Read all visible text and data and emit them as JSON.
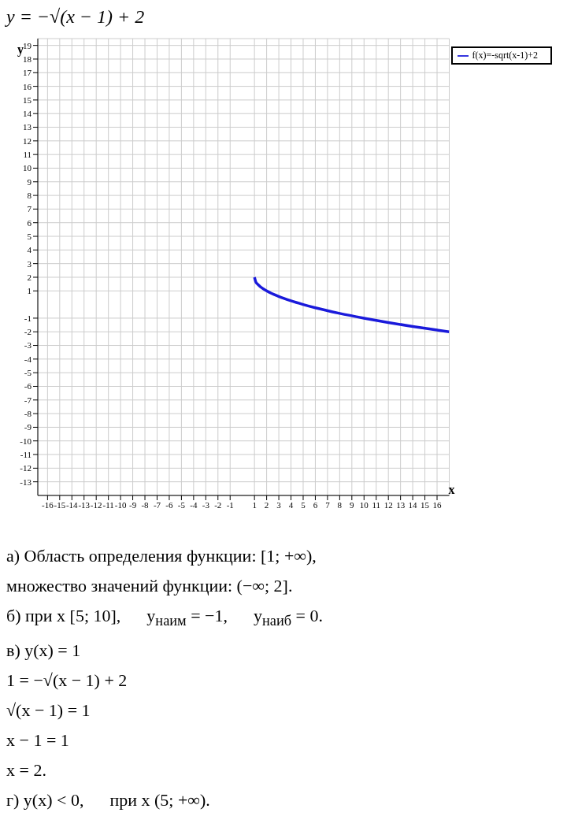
{
  "chart_data": {
    "type": "line",
    "title": "y = −√(x − 1) + 2",
    "xlabel": "x",
    "ylabel": "y",
    "x": [
      1,
      1.1,
      1.25,
      1.5,
      2,
      3,
      4,
      5,
      6,
      8,
      10,
      12,
      14,
      16,
      17
    ],
    "series": [
      {
        "name": "f(x)=-sqrt(x-1)+2",
        "color": "#1a1adb",
        "values": [
          2,
          1.68,
          1.5,
          1.29,
          1,
          0.59,
          0.27,
          0,
          -0.24,
          -0.65,
          -1,
          -1.32,
          -1.61,
          -1.87,
          -2
        ]
      }
    ],
    "xlim": [
      -16.8,
      17
    ],
    "ylim": [
      -14,
      19.5
    ],
    "xticks": [
      -16,
      -15,
      -14,
      -13,
      -12,
      -11,
      -10,
      -9,
      -8,
      -7,
      -6,
      -5,
      -4,
      -3,
      -2,
      -1,
      1,
      2,
      3,
      4,
      5,
      6,
      7,
      8,
      9,
      10,
      11,
      12,
      13,
      14,
      15,
      16
    ],
    "yticks": [
      -13,
      -12,
      -11,
      -10,
      -9,
      -8,
      -7,
      -6,
      -5,
      -4,
      -3,
      -2,
      -1,
      1,
      2,
      3,
      4,
      5,
      6,
      7,
      8,
      9,
      10,
      11,
      12,
      13,
      14,
      15,
      16,
      17,
      18,
      19
    ],
    "grid": true,
    "legend": "top right",
    "line_style": "solid",
    "annotations": [
      "а) Область определения функции: [1; +∞),",
      "множество значений функции: (−∞; 2].",
      "б) при x [5; 10],      y$_{наим}$ = −1,      y$_{наиб}$ = 0.",
      "в) y(x) = 1",
      "1 = −√(x − 1) + 2",
      "√(x − 1) = 1",
      "x − 1 = 1",
      "x = 2.",
      "г) y(x) < 0,      при x (5; +∞)."
    ]
  }
}
